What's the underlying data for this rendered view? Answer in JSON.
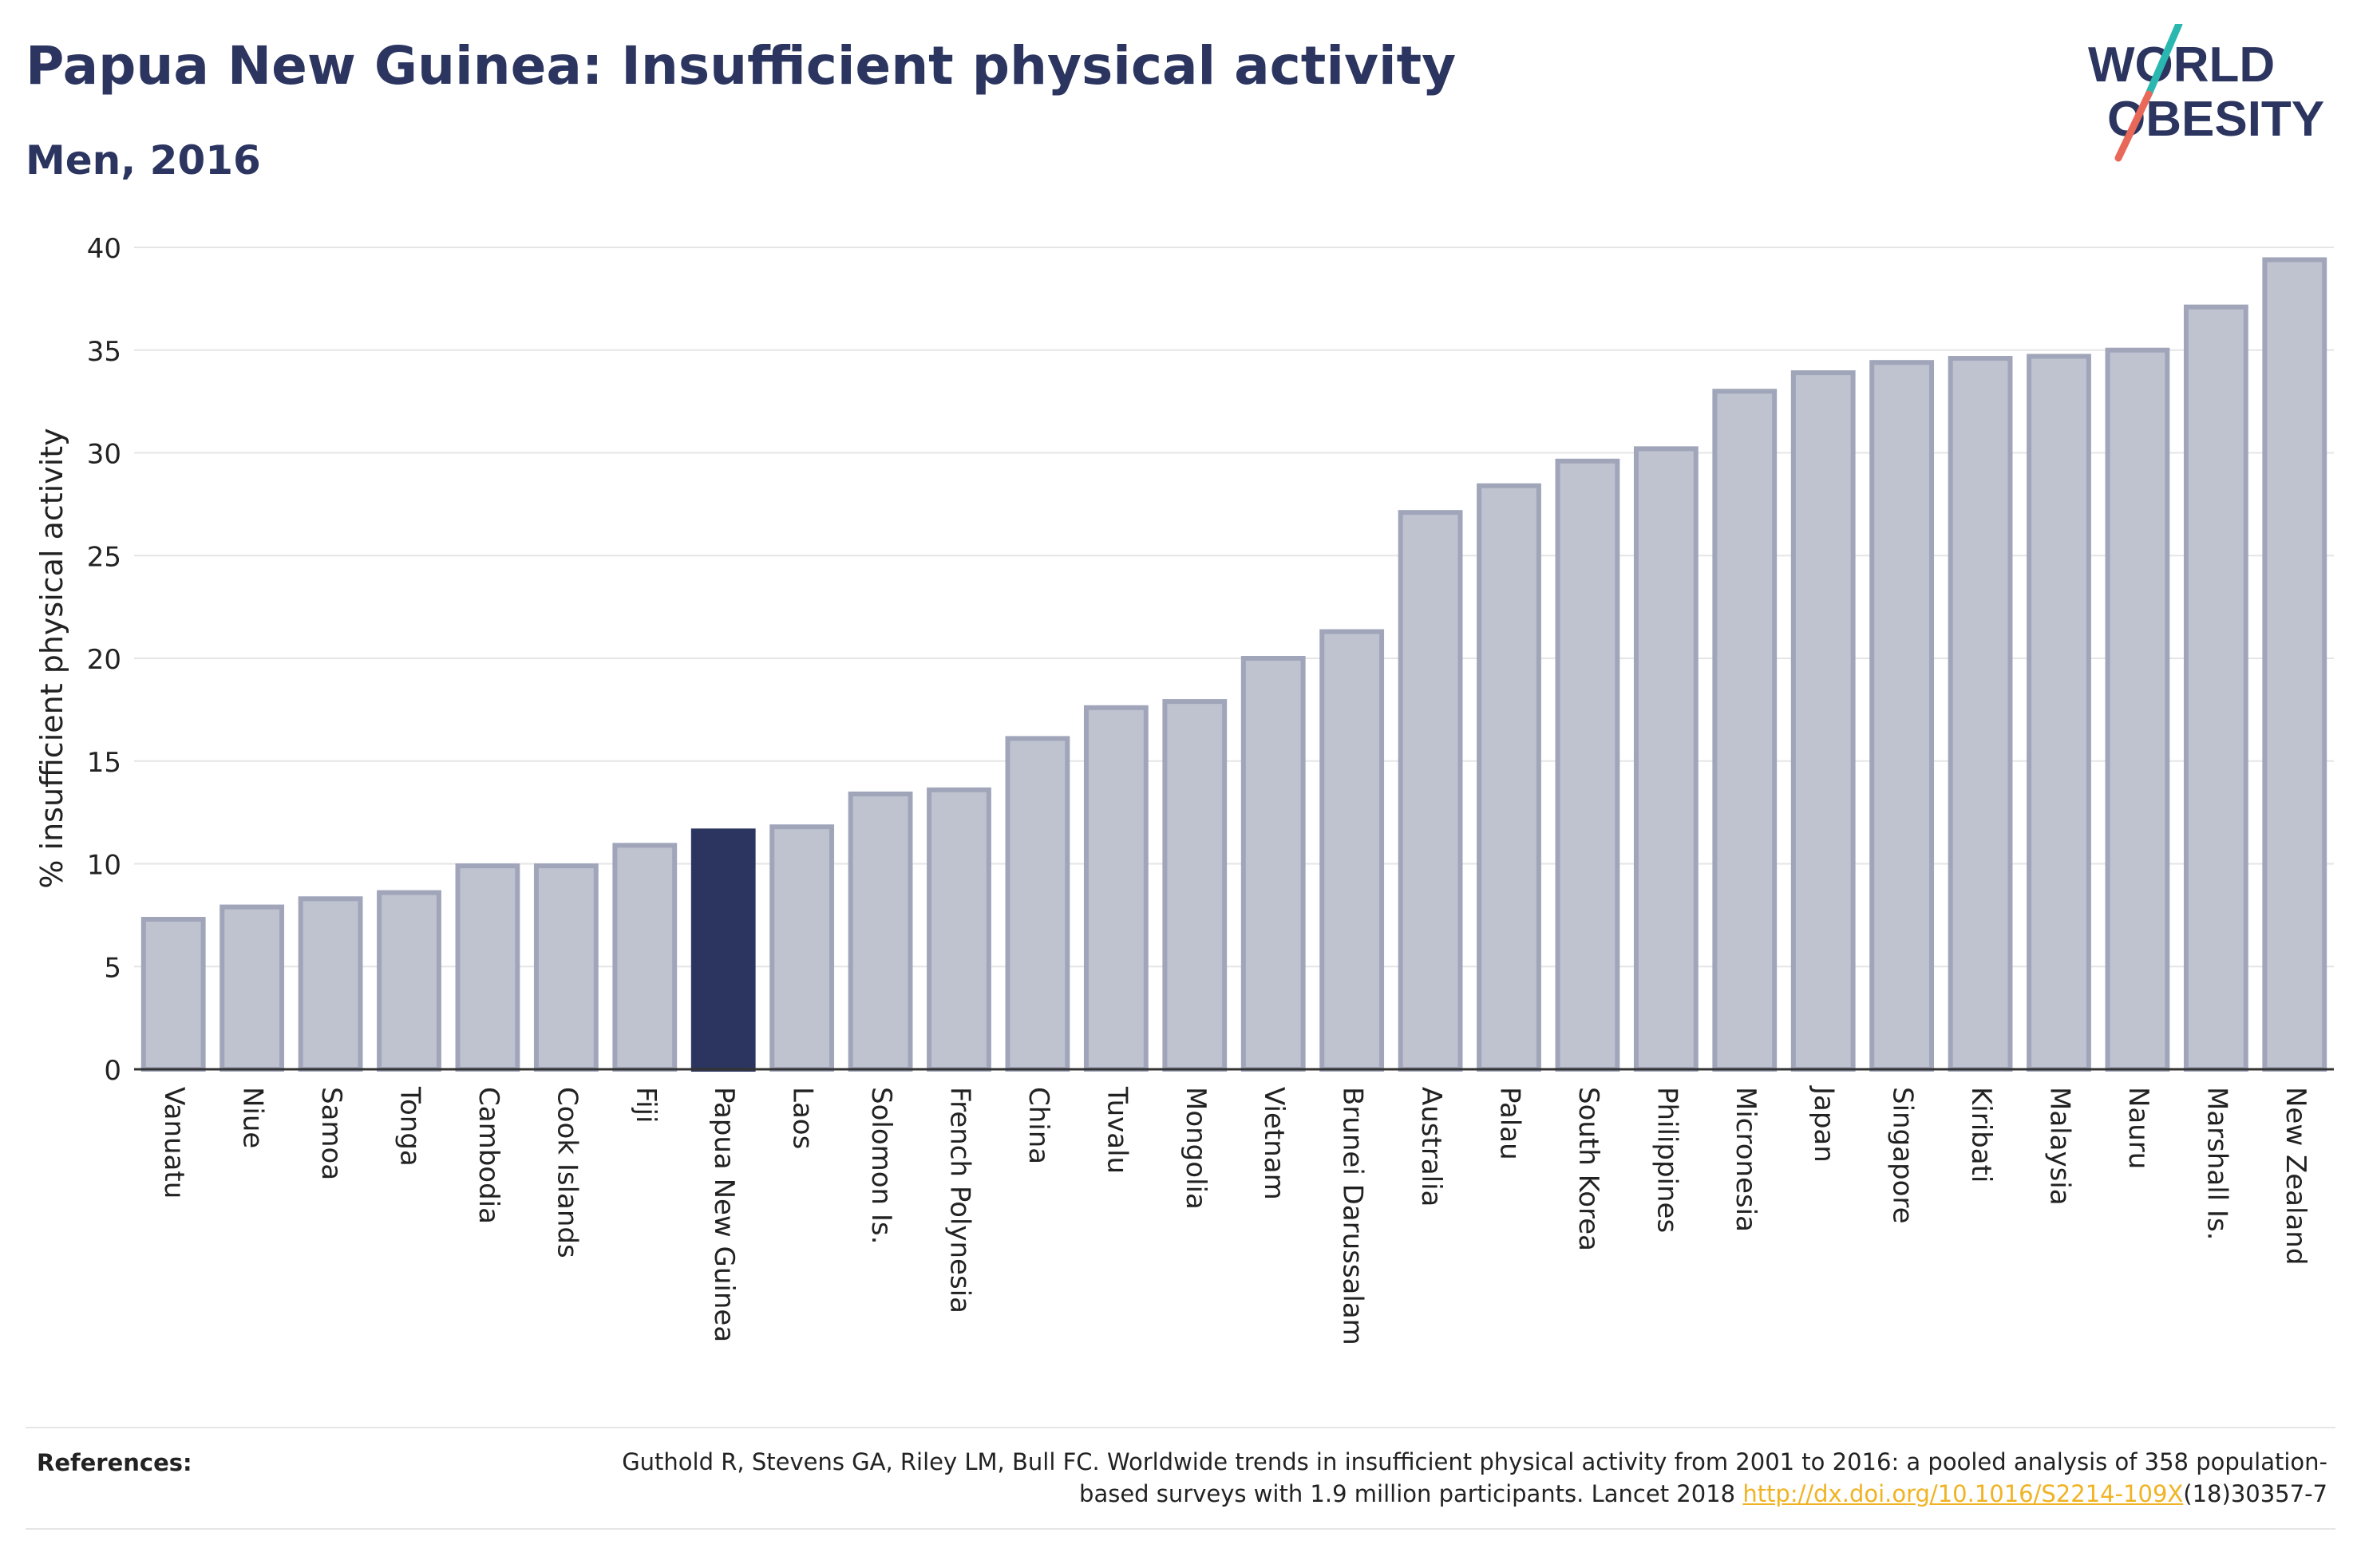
{
  "title": "Papua New Guinea: Insufficient physical activity",
  "subtitle": "Men, 2016",
  "logo": {
    "line1": "WORLD",
    "line2": "OBESITY"
  },
  "colors": {
    "highlight": "#2b355f",
    "bar": "#bfc2cf",
    "bar_stroke": "#a0a5ba",
    "title": "#2b355f",
    "link": "#f0b323",
    "logo_teal": "#2ab7b0",
    "logo_coral": "#e8685a"
  },
  "chart_data": {
    "type": "bar",
    "title": "Papua New Guinea: Insufficient physical activity",
    "subtitle": "Men, 2016",
    "xlabel": "",
    "ylabel": "% insufficient physical activity",
    "ylim": [
      0,
      40
    ],
    "yticks": [
      0,
      5,
      10,
      15,
      20,
      25,
      30,
      35,
      40
    ],
    "grid": true,
    "highlight": "Papua New Guinea",
    "categories": [
      "Vanuatu",
      "Niue",
      "Samoa",
      "Tonga",
      "Cambodia",
      "Cook Islands",
      "Fiji",
      "Papua New Guinea",
      "Laos",
      "Solomon Is.",
      "French Polynesia",
      "China",
      "Tuvalu",
      "Mongolia",
      "Vietnam",
      "Brunei Darussalam",
      "Australia",
      "Palau",
      "South Korea",
      "Philippines",
      "Micronesia",
      "Japan",
      "Singapore",
      "Kiribati",
      "Malaysia",
      "Nauru",
      "Marshall Is.",
      "New Zealand"
    ],
    "values": [
      7.3,
      7.9,
      8.3,
      8.6,
      9.9,
      9.9,
      10.9,
      11.6,
      11.8,
      13.4,
      13.6,
      16.1,
      17.6,
      17.9,
      20.0,
      21.3,
      27.1,
      28.4,
      29.6,
      30.2,
      33.0,
      33.9,
      34.4,
      34.6,
      34.7,
      35.0,
      37.1,
      39.4
    ]
  },
  "references": {
    "label": "References:",
    "text_before": "Guthold R, Stevens GA, Riley LM, Bull FC. Worldwide trends in insufficient physical activity from 2001 to 2016: a pooled analysis of 358 population-based surveys with 1.9 million participants. Lancet 2018 ",
    "link": "http://dx.doi.org/10.1016/S2214-109X",
    "text_after": "(18)30357-7"
  }
}
